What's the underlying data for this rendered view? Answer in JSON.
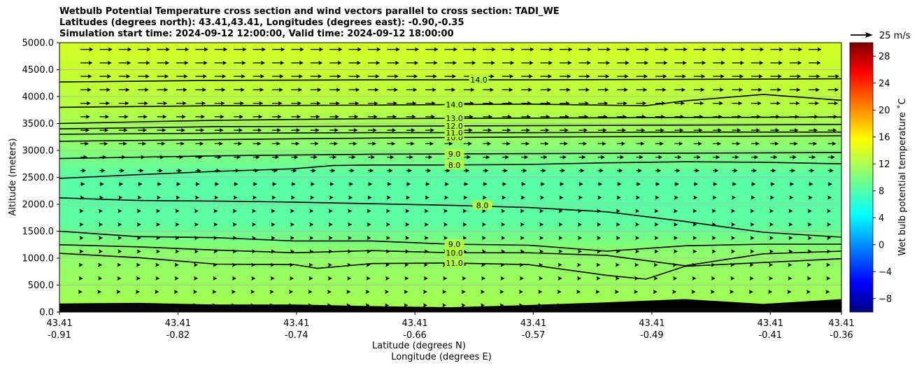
{
  "titles": [
    "Wetbulb Potential Temperature cross section and wind vectors parallel to cross section: TADI_WE",
    "Latitudes (degrees north): 43.41,43.41, Longitudes (degrees east): -0.90,-0.35",
    "Simulation start time: 2024-09-12 12:00:00, Valid time: 2024-09-12 18:00:00"
  ],
  "chart_data": {
    "type": "heatmap",
    "title": "Wetbulb Potential Temperature cross section and wind vectors parallel to cross section: TADI_WE",
    "ylabel": "Altitude (meters)",
    "xlabel_lat": "Latitude (degrees N)",
    "xlabel_lon": "Longitude (degrees E)",
    "ylim": [
      0,
      5000
    ],
    "yticks": [
      "0.0",
      "500.0",
      "1000.0",
      "1500.0",
      "2000.0",
      "2500.0",
      "3000.0",
      "3500.0",
      "4000.0",
      "4500.0",
      "5000.0"
    ],
    "xticks_lat": [
      "43.41",
      "43.41",
      "43.41",
      "43.41",
      "43.41",
      "43.41",
      "43.41",
      "43.41"
    ],
    "xticks_lon": [
      "-0.91",
      "-0.82",
      "-0.74",
      "-0.66",
      "-0.57",
      "-0.49",
      "-0.41",
      "-0.36"
    ],
    "grid": "horizontal",
    "colorbar": {
      "label": "Wet bulb potential temperature ˚C",
      "range": [
        -10,
        30
      ],
      "ticks": [
        "−8",
        "−4",
        "0",
        "4",
        "8",
        "12",
        "16",
        "20",
        "24",
        "28"
      ],
      "colormap": "jet"
    },
    "quiver_key": "25 m/s",
    "contours": [
      {
        "label": "8.0",
        "x": [
          0,
          0.1,
          0.2,
          0.3,
          0.4,
          0.5,
          0.6,
          0.7,
          0.8,
          0.9,
          1.0
        ],
        "y": [
          2120,
          2070,
          2060,
          2040,
          2010,
          1980,
          1940,
          1860,
          1680,
          1480,
          1390
        ]
      },
      {
        "label": "8.0",
        "x": [
          0,
          0.1,
          0.2,
          0.3,
          0.35,
          0.4,
          0.5,
          0.6,
          0.7,
          0.8,
          0.9,
          1.0
        ],
        "y": [
          2480,
          2550,
          2610,
          2660,
          2720,
          2730,
          2730,
          2740,
          2770,
          2790,
          2780,
          2750
        ]
      },
      {
        "label": "9.0",
        "x": [
          0,
          0.1,
          0.2,
          0.3,
          0.4,
          0.5,
          0.6,
          0.7,
          0.8,
          0.9,
          1.0
        ],
        "y": [
          1500,
          1400,
          1380,
          1320,
          1320,
          1260,
          1240,
          1130,
          1230,
          1260,
          1260
        ]
      },
      {
        "label": "10.0",
        "x": [
          0,
          0.1,
          0.2,
          0.3,
          0.4,
          0.5,
          0.6,
          0.7,
          0.8,
          0.9,
          1.0
        ],
        "y": [
          1250,
          1210,
          1150,
          1100,
          1140,
          1100,
          1100,
          1050,
          860,
          1080,
          1130
        ]
      },
      {
        "label": "11.0",
        "x": [
          0,
          0.1,
          0.2,
          0.3,
          0.33,
          0.4,
          0.5,
          0.6,
          0.7,
          0.75,
          0.8,
          0.9,
          1.0
        ],
        "y": [
          1090,
          1010,
          890,
          880,
          810,
          900,
          910,
          880,
          680,
          610,
          850,
          920,
          990
        ]
      },
      {
        "label": "9.0",
        "x": [
          0,
          0.2,
          0.4,
          0.6,
          0.8,
          1.0
        ],
        "y": [
          2850,
          2900,
          2930,
          2940,
          2950,
          2960
        ]
      },
      {
        "label": "10.0",
        "x": [
          0,
          0.2,
          0.4,
          0.6,
          0.8,
          1.0
        ],
        "y": [
          3170,
          3200,
          3230,
          3250,
          3260,
          3270
        ]
      },
      {
        "label": "11.0",
        "x": [
          0,
          0.2,
          0.4,
          0.6,
          0.8,
          1.0
        ],
        "y": [
          3300,
          3320,
          3330,
          3330,
          3340,
          3340
        ]
      },
      {
        "label": "12.0",
        "x": [
          0,
          0.2,
          0.4,
          0.6,
          0.8,
          1.0
        ],
        "y": [
          3400,
          3440,
          3450,
          3460,
          3470,
          3480
        ]
      },
      {
        "label": "13.0",
        "x": [
          0,
          0.2,
          0.4,
          0.6,
          0.8,
          1.0
        ],
        "y": [
          3500,
          3560,
          3590,
          3600,
          3610,
          3620
        ]
      },
      {
        "label": "14.0",
        "x": [
          0,
          0.2,
          0.4,
          0.6,
          0.65,
          0.75,
          0.8,
          0.9,
          1.0
        ],
        "y": [
          3800,
          3830,
          3840,
          3860,
          3850,
          3830,
          3920,
          4040,
          3930
        ]
      },
      {
        "label": "14.0",
        "x": [
          0,
          0.2,
          0.4,
          0.6,
          0.8,
          1.0
        ],
        "y": [
          4270,
          4300,
          4310,
          4310,
          4320,
          4330
        ]
      }
    ],
    "wind_levels_m": [
      125,
      375,
      625,
      875,
      1125,
      1375,
      1625,
      1875,
      2125,
      2375,
      2625,
      2875,
      3125,
      3375,
      3625,
      3875,
      4125,
      4375,
      4625,
      4875
    ],
    "wind_speed_m_s": [
      3,
      3,
      4,
      4,
      5,
      5,
      5,
      5,
      6,
      7,
      9,
      11,
      13,
      14,
      15,
      16,
      17,
      18,
      19,
      20
    ],
    "terrain_x": [
      0,
      0.1,
      0.2,
      0.3,
      0.4,
      0.5,
      0.6,
      0.7,
      0.8,
      0.9,
      1.0
    ],
    "terrain_m": [
      160,
      170,
      140,
      140,
      110,
      90,
      130,
      180,
      240,
      150,
      240
    ]
  }
}
